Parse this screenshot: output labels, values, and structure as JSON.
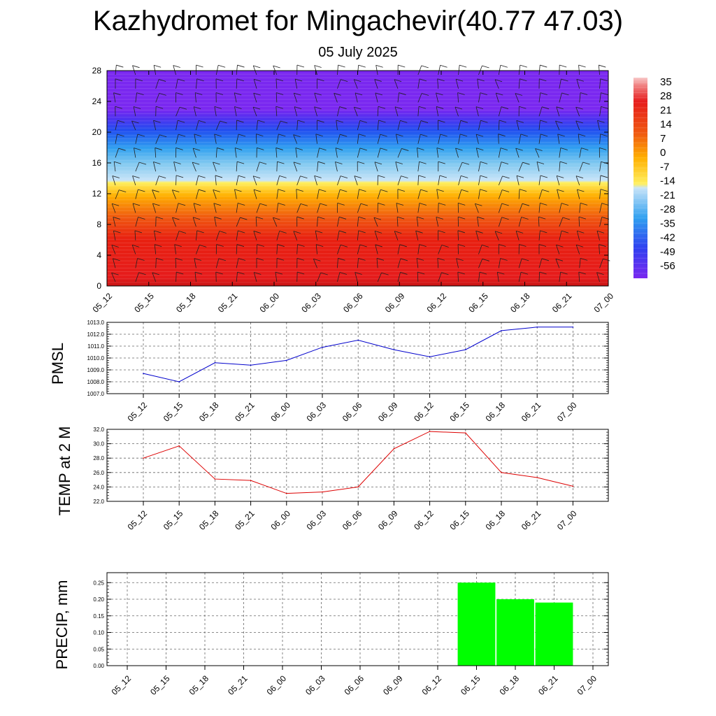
{
  "title": "Kazhydromet for Mingachevir(40.77 47.03)",
  "subtitle": "05 July 2025",
  "time_labels": [
    "05_12",
    "05_15",
    "05_18",
    "05_21",
    "06_00",
    "06_03",
    "06_06",
    "06_09",
    "06_12",
    "06_15",
    "06_18",
    "06_21",
    "07_00"
  ],
  "chart_data": [
    {
      "type": "heatmap",
      "name": "upper-air-temperature-and-wind",
      "x": [
        "05_12",
        "05_15",
        "05_18",
        "05_21",
        "06_00",
        "06_03",
        "06_06",
        "06_09",
        "06_12",
        "06_15",
        "06_18",
        "06_21",
        "07_00"
      ],
      "ylim": [
        0,
        28
      ],
      "yticks": [
        0,
        4,
        8,
        12,
        16,
        20,
        24,
        28
      ],
      "color_levels": [
        35,
        28,
        21,
        14,
        7,
        0,
        -7,
        -14,
        -21,
        -28,
        -35,
        -42,
        -49,
        -56
      ],
      "colors": {
        "warm": "#e00000",
        "mid": "#ffe000",
        "cool": "#40b0f0",
        "cold": "#7020f0"
      }
    },
    {
      "type": "line",
      "ylabel": "PMSL",
      "x": [
        "05_12",
        "05_15",
        "05_18",
        "05_21",
        "06_00",
        "06_03",
        "06_06",
        "06_09",
        "06_12",
        "06_15",
        "06_18",
        "06_21",
        "07_00"
      ],
      "values": [
        1008.7,
        1008.0,
        1009.6,
        1009.4,
        1009.8,
        1010.9,
        1011.5,
        1010.7,
        1010.1,
        1010.7,
        1012.3,
        1012.6,
        1012.6
      ],
      "ylim": [
        1007.0,
        1013.0
      ],
      "yticks": [
        "1007.0",
        "1008.0",
        "1009.0",
        "1010.0",
        "1011.0",
        "1012.0",
        "1013.0"
      ],
      "color": "#0000cc",
      "grid": true
    },
    {
      "type": "line",
      "ylabel": "TEMP at 2 M",
      "x": [
        "05_12",
        "05_15",
        "05_18",
        "05_21",
        "06_00",
        "06_03",
        "06_06",
        "06_09",
        "06_12",
        "06_15",
        "06_18",
        "06_21",
        "07_00"
      ],
      "values": [
        28.0,
        29.7,
        25.1,
        24.9,
        23.1,
        23.3,
        24.0,
        29.3,
        31.7,
        31.5,
        26.0,
        25.3,
        24.1
      ],
      "ylim": [
        22.0,
        32.0
      ],
      "yticks": [
        "22.0",
        "24.0",
        "26.0",
        "28.0",
        "30.0",
        "32.0"
      ],
      "color": "#dd0000",
      "grid": true
    },
    {
      "type": "bar",
      "ylabel": "PRECIP, mm",
      "x": [
        "05_12",
        "05_15",
        "05_18",
        "05_21",
        "06_00",
        "06_03",
        "06_06",
        "06_09",
        "06_12",
        "06_15",
        "06_18",
        "06_21",
        "07_00"
      ],
      "values": [
        0,
        0,
        0,
        0,
        0,
        0,
        0,
        0,
        0,
        0.25,
        0.2,
        0.19,
        0
      ],
      "ylim": [
        0,
        0.28
      ],
      "yticks": [
        "0.00",
        "0.05",
        "0.10",
        "0.15",
        "0.20",
        "0.25"
      ],
      "color": "#00ff00",
      "grid": true
    }
  ]
}
